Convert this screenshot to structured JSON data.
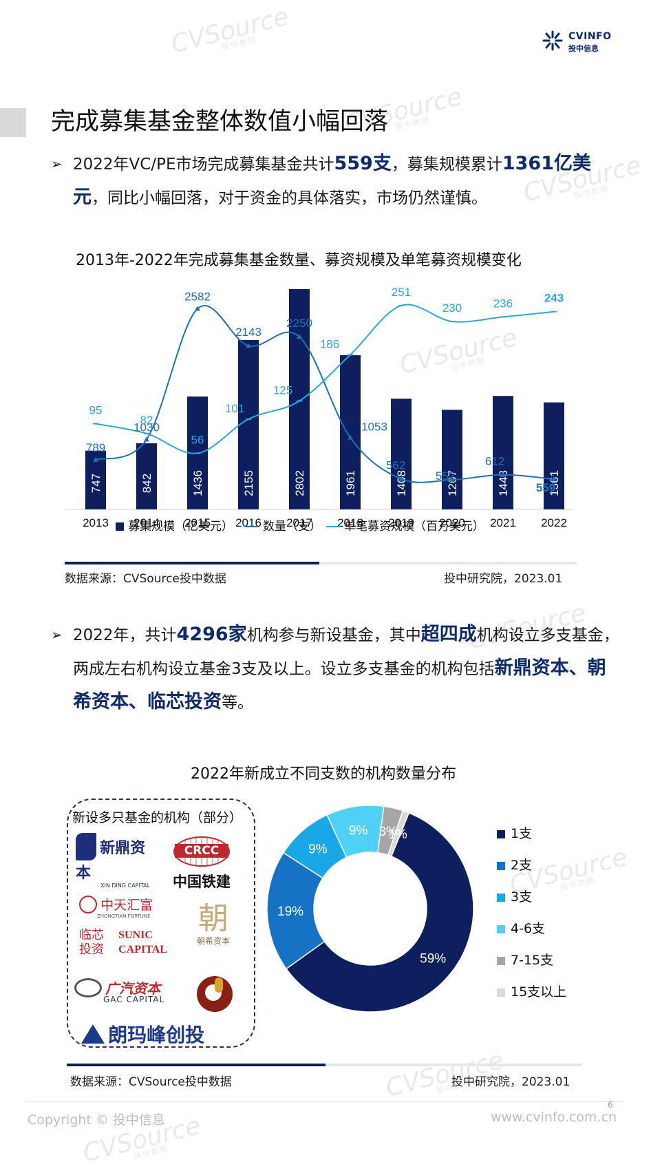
{
  "header": {
    "logo_text": "CVINFO",
    "logo_sub": "投中信息"
  },
  "page": {
    "title": "完成募集基金整体数值小幅回落",
    "page_number": "6"
  },
  "bullet1": {
    "t1": "2022年VC/PE市场完成募集基金共计",
    "h1": "559支",
    "t2": "，募集规模累计",
    "h2": "1361亿美元",
    "t3": "，同比小幅回落，对于资金的具体落实，市场仍然谨慎。"
  },
  "bullet2": {
    "t1": "2022年，共计",
    "h1": "4296家",
    "t2": "机构参与新设基金，其中",
    "h2": "超四成",
    "t3": "机构设立多支基金，两成左右机构设立基金3支及以上。设立多支基金的机构包括",
    "h3": "新鼎资本、朝希资本、临芯投资",
    "t4": "等。"
  },
  "chart1": {
    "title": "2013年-2022年完成募集基金数量、募资规模及单笔募资规模变化",
    "source": "数据来源：CVSource投中数据",
    "publisher": "投中研究院，2023.01"
  },
  "chart_data": [
    {
      "type": "bar",
      "title": "2013年-2022年完成募集基金数量、募资规模及单笔募资规模变化",
      "categories": [
        "2013",
        "2014",
        "2015",
        "2016",
        "2017",
        "2018",
        "2019",
        "2020",
        "2021",
        "2022"
      ],
      "series": [
        {
          "name": "募集规模（亿美元）",
          "kind": "bar",
          "color": "#0d1f5e",
          "values": [
            747,
            842,
            1436,
            2155,
            2802,
            1961,
            1408,
            1267,
            1443,
            1361
          ]
        },
        {
          "name": "数量（支）",
          "kind": "line",
          "color": "#1f6fb5",
          "values": [
            789,
            1030,
            2582,
            2143,
            2250,
            1053,
            562,
            552,
            612,
            559
          ]
        },
        {
          "name": "单笔募资规模（百万美元）",
          "kind": "line",
          "color": "#29a8e0",
          "values": [
            95,
            82,
            56,
            101,
            125,
            186,
            251,
            230,
            236,
            243
          ]
        }
      ],
      "legend": "bottom"
    },
    {
      "type": "pie",
      "title": "2022年新成立不同支数的机构数量分布",
      "labels": [
        "1支",
        "2支",
        "3支",
        "4-6支",
        "7-15支",
        "15支以上"
      ],
      "values": [
        59,
        19,
        9,
        9,
        3,
        1
      ],
      "value_labels": [
        "59%",
        "19%",
        "9%",
        "9%",
        "3%",
        "1%"
      ],
      "colors": [
        "#0d1f5e",
        "#1672c4",
        "#1aa7e8",
        "#4fd0f5",
        "#a6a6a6",
        "#d9d9d9"
      ],
      "legend": "right"
    }
  ],
  "chart2": {
    "title": "2022年新成立不同支数的机构数量分布",
    "source": "数据来源：CVSource投中数据",
    "publisher": "投中研究院，2023.01"
  },
  "orgs": {
    "label": "新设多只基金的机构（部分）",
    "items": [
      {
        "text": "新鼎资本",
        "sub": "XIN DING CAPITAL",
        "color": "#1d2f7a"
      },
      {
        "text": "中国铁建",
        "sub": "CRCC",
        "color": "#111111"
      },
      {
        "text": "中天汇富",
        "sub": "ZHONGTIAN FORTUNE",
        "color": "#c0282d"
      },
      {
        "text": "朝希资本",
        "sub": "",
        "color": "#8a6d4a"
      },
      {
        "text": "临芯投资",
        "sub": "SUNIC CAPITAL",
        "color": "#c0282d"
      },
      {
        "text": "广汽资本",
        "sub": "GAC CAPITAL",
        "color": "#c0282d"
      },
      {
        "text": "朗玛峰创投",
        "sub": "",
        "color": "#1d3a8a"
      }
    ]
  },
  "footer": {
    "copyright": "Copyright © 投中信息",
    "website": "www.cvinfo.com.cn"
  },
  "watermark": {
    "text": "CVSource",
    "sub": "投中数据"
  }
}
